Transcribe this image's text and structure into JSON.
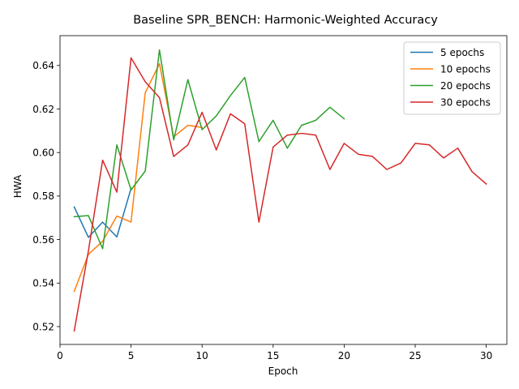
{
  "chart_data": {
    "type": "line",
    "title": "Baseline SPR_BENCH: Harmonic-Weighted Accuracy",
    "xlabel": "Epoch",
    "ylabel": "HWA",
    "xlim": [
      0,
      31.45
    ],
    "ylim": [
      0.5118,
      0.6537
    ],
    "xticks": [
      0,
      5,
      10,
      15,
      20,
      25,
      30
    ],
    "yticks": [
      0.52,
      0.54,
      0.56,
      0.58,
      0.6,
      0.62,
      0.64
    ],
    "grid": false,
    "legend_position": "top-right",
    "series": [
      {
        "name": "5 epochs",
        "color": "#1f77b4",
        "x": [
          1,
          2,
          3,
          4,
          5
        ],
        "y": [
          0.575,
          0.561,
          0.568,
          0.5612,
          0.5835
        ]
      },
      {
        "name": "10 epochs",
        "color": "#ff7f0e",
        "x": [
          1,
          2,
          3,
          4,
          5,
          6,
          7,
          8,
          9,
          10
        ],
        "y": [
          0.5362,
          0.5532,
          0.5592,
          0.5708,
          0.568,
          0.6275,
          0.6408,
          0.6072,
          0.6125,
          0.6115
        ]
      },
      {
        "name": "20 epochs",
        "color": "#2ca02c",
        "x": [
          1,
          2,
          3,
          4,
          5,
          6,
          7,
          8,
          9,
          10,
          11,
          12,
          13,
          14,
          15,
          16,
          17,
          18,
          19,
          20
        ],
        "y": [
          0.5705,
          0.571,
          0.5558,
          0.6035,
          0.5828,
          0.5915,
          0.6472,
          0.6058,
          0.6335,
          0.6105,
          0.6168,
          0.6262,
          0.6345,
          0.605,
          0.6148,
          0.602,
          0.6125,
          0.6148,
          0.6208,
          0.6155
        ]
      },
      {
        "name": "30 epochs",
        "color": "#d62728",
        "x": [
          1,
          2,
          3,
          4,
          5,
          6,
          7,
          8,
          9,
          10,
          11,
          12,
          13,
          14,
          15,
          16,
          17,
          18,
          19,
          20,
          21,
          22,
          23,
          24,
          25,
          26,
          27,
          28,
          29,
          30
        ],
        "y": [
          0.518,
          0.5548,
          0.5965,
          0.5818,
          0.6435,
          0.6325,
          0.6252,
          0.5982,
          0.6035,
          0.6185,
          0.6012,
          0.6178,
          0.6132,
          0.568,
          0.6025,
          0.608,
          0.6088,
          0.608,
          0.5922,
          0.6042,
          0.5992,
          0.5982,
          0.5922,
          0.5952,
          0.6042,
          0.6035,
          0.5975,
          0.602,
          0.5912,
          0.5855
        ]
      }
    ]
  }
}
